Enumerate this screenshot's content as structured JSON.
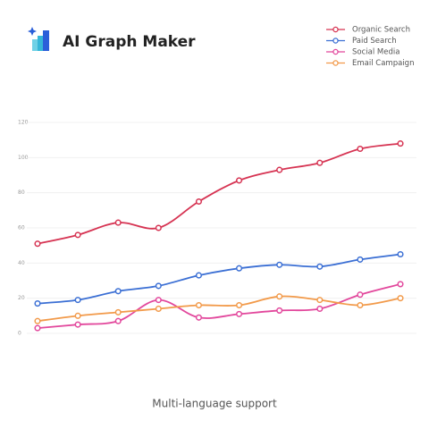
{
  "header": {
    "title": "AI Graph Maker"
  },
  "chart_data": {
    "type": "line",
    "categories": [
      null,
      null,
      null,
      null,
      null,
      null,
      null,
      null,
      null,
      null
    ],
    "series": [
      {
        "name": "Organic Search",
        "color": "#d63352",
        "values": [
          51,
          56,
          63,
          60,
          75,
          87,
          93,
          97,
          105,
          108
        ]
      },
      {
        "name": "Paid Search",
        "color": "#3b6fd4",
        "values": [
          17,
          19,
          24,
          27,
          33,
          37,
          39,
          38,
          42,
          45
        ]
      },
      {
        "name": "Social Media",
        "color": "#e2479c",
        "values": [
          3,
          5,
          7,
          19,
          9,
          11,
          13,
          14,
          22,
          28
        ]
      },
      {
        "name": "Email Campaign",
        "color": "#f29a4a",
        "values": [
          7,
          10,
          12,
          14,
          16,
          16,
          21,
          19,
          16,
          20
        ]
      }
    ],
    "ylim": [
      0,
      120
    ],
    "yticks": [
      0,
      20,
      40,
      60,
      80,
      100,
      120
    ],
    "grid": true,
    "legend": "top-right"
  },
  "footer": {
    "caption": "Multi-language support"
  }
}
